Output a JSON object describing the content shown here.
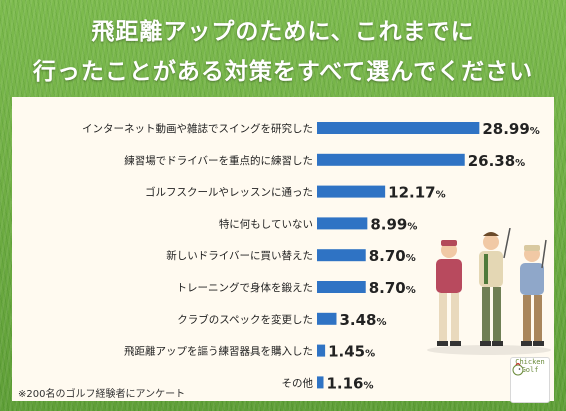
{
  "title_line1": "飛距離アップのために、これまでに",
  "title_line2": "行ったことがある対策をすべて選んでください",
  "note": "※200名のゴルフ経験者にアンケート",
  "logo": {
    "line1": "Chicken",
    "line2": "Golf",
    "icon": "chicken-icon"
  },
  "colors": {
    "bar": "#2f73c4",
    "background": "#6fb043",
    "panel": "#fffaf0"
  },
  "chart_data": {
    "type": "bar",
    "orientation": "horizontal",
    "title": "飛距離アップのために、これまでに行ったことがある対策をすべて選んでください",
    "unit": "%",
    "categories": [
      "インターネット動画や雑誌でスイングを研究した",
      "練習場でドライバーを重点的に練習した",
      "ゴルフスクールやレッスンに通った",
      "特に何もしていない",
      "新しいドライバーに買い替えた",
      "トレーニングで身体を鍛えた",
      "クラブのスペックを変更した",
      "飛距離アップを謳う練習器具を購入した",
      "その他"
    ],
    "values": [
      28.99,
      26.38,
      12.17,
      8.99,
      8.7,
      8.7,
      3.48,
      1.45,
      1.16
    ],
    "value_labels": [
      "28.99",
      "26.38",
      "12.17",
      "8.99",
      "8.70",
      "8.70",
      "3.48",
      "1.45",
      "1.16"
    ],
    "grid": false,
    "legend": "none"
  }
}
